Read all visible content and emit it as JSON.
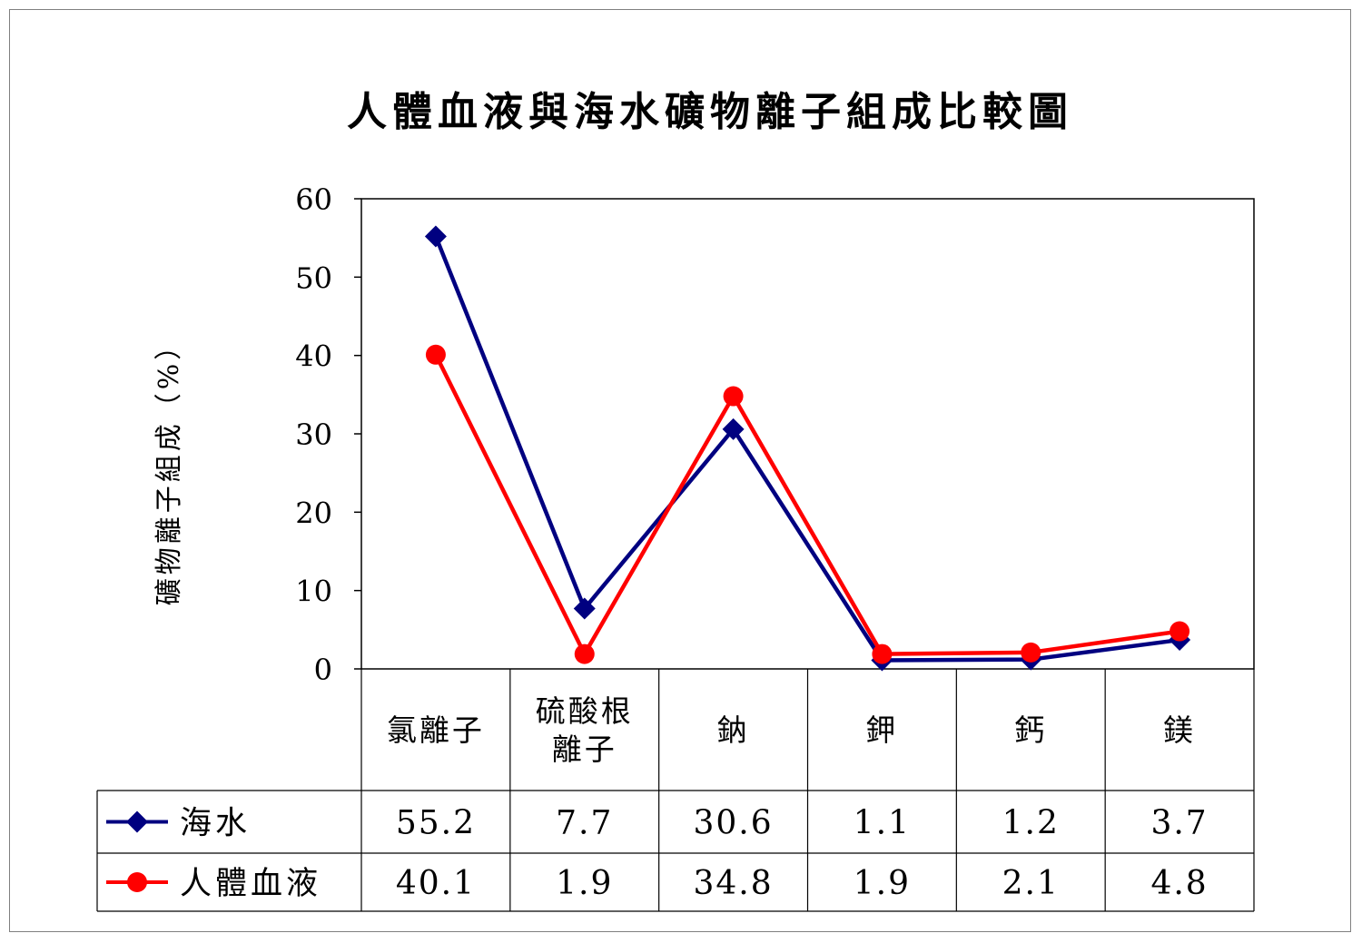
{
  "chart_data": {
    "type": "line",
    "title": "人體血液與海水礦物離子組成比較圖",
    "ylabel": "礦物離子組成（%）",
    "xlabel": "",
    "ylim": [
      0,
      60
    ],
    "yticks": [
      0,
      10,
      20,
      30,
      40,
      50,
      60
    ],
    "categories": [
      [
        "氯離子"
      ],
      [
        "硫酸根",
        "離子"
      ],
      [
        "鈉"
      ],
      [
        "鉀"
      ],
      [
        "鈣"
      ],
      [
        "鎂"
      ]
    ],
    "series": [
      {
        "name": "海水",
        "values": [
          55.2,
          7.7,
          30.6,
          1.1,
          1.2,
          3.7
        ],
        "labels": [
          "55.2",
          "7.7",
          "30.6",
          "1.1",
          "1.2",
          "3.7"
        ],
        "color": "#000080",
        "marker": "diamond"
      },
      {
        "name": "人體血液",
        "values": [
          40.1,
          1.9,
          34.8,
          1.9,
          2.1,
          4.8
        ],
        "labels": [
          "40.1",
          "1.9",
          "34.8",
          "1.9",
          "2.1",
          "4.8"
        ],
        "color": "#ff0000",
        "marker": "circle"
      }
    ],
    "grid": false,
    "legend": "data-table-left",
    "data_table": true
  }
}
